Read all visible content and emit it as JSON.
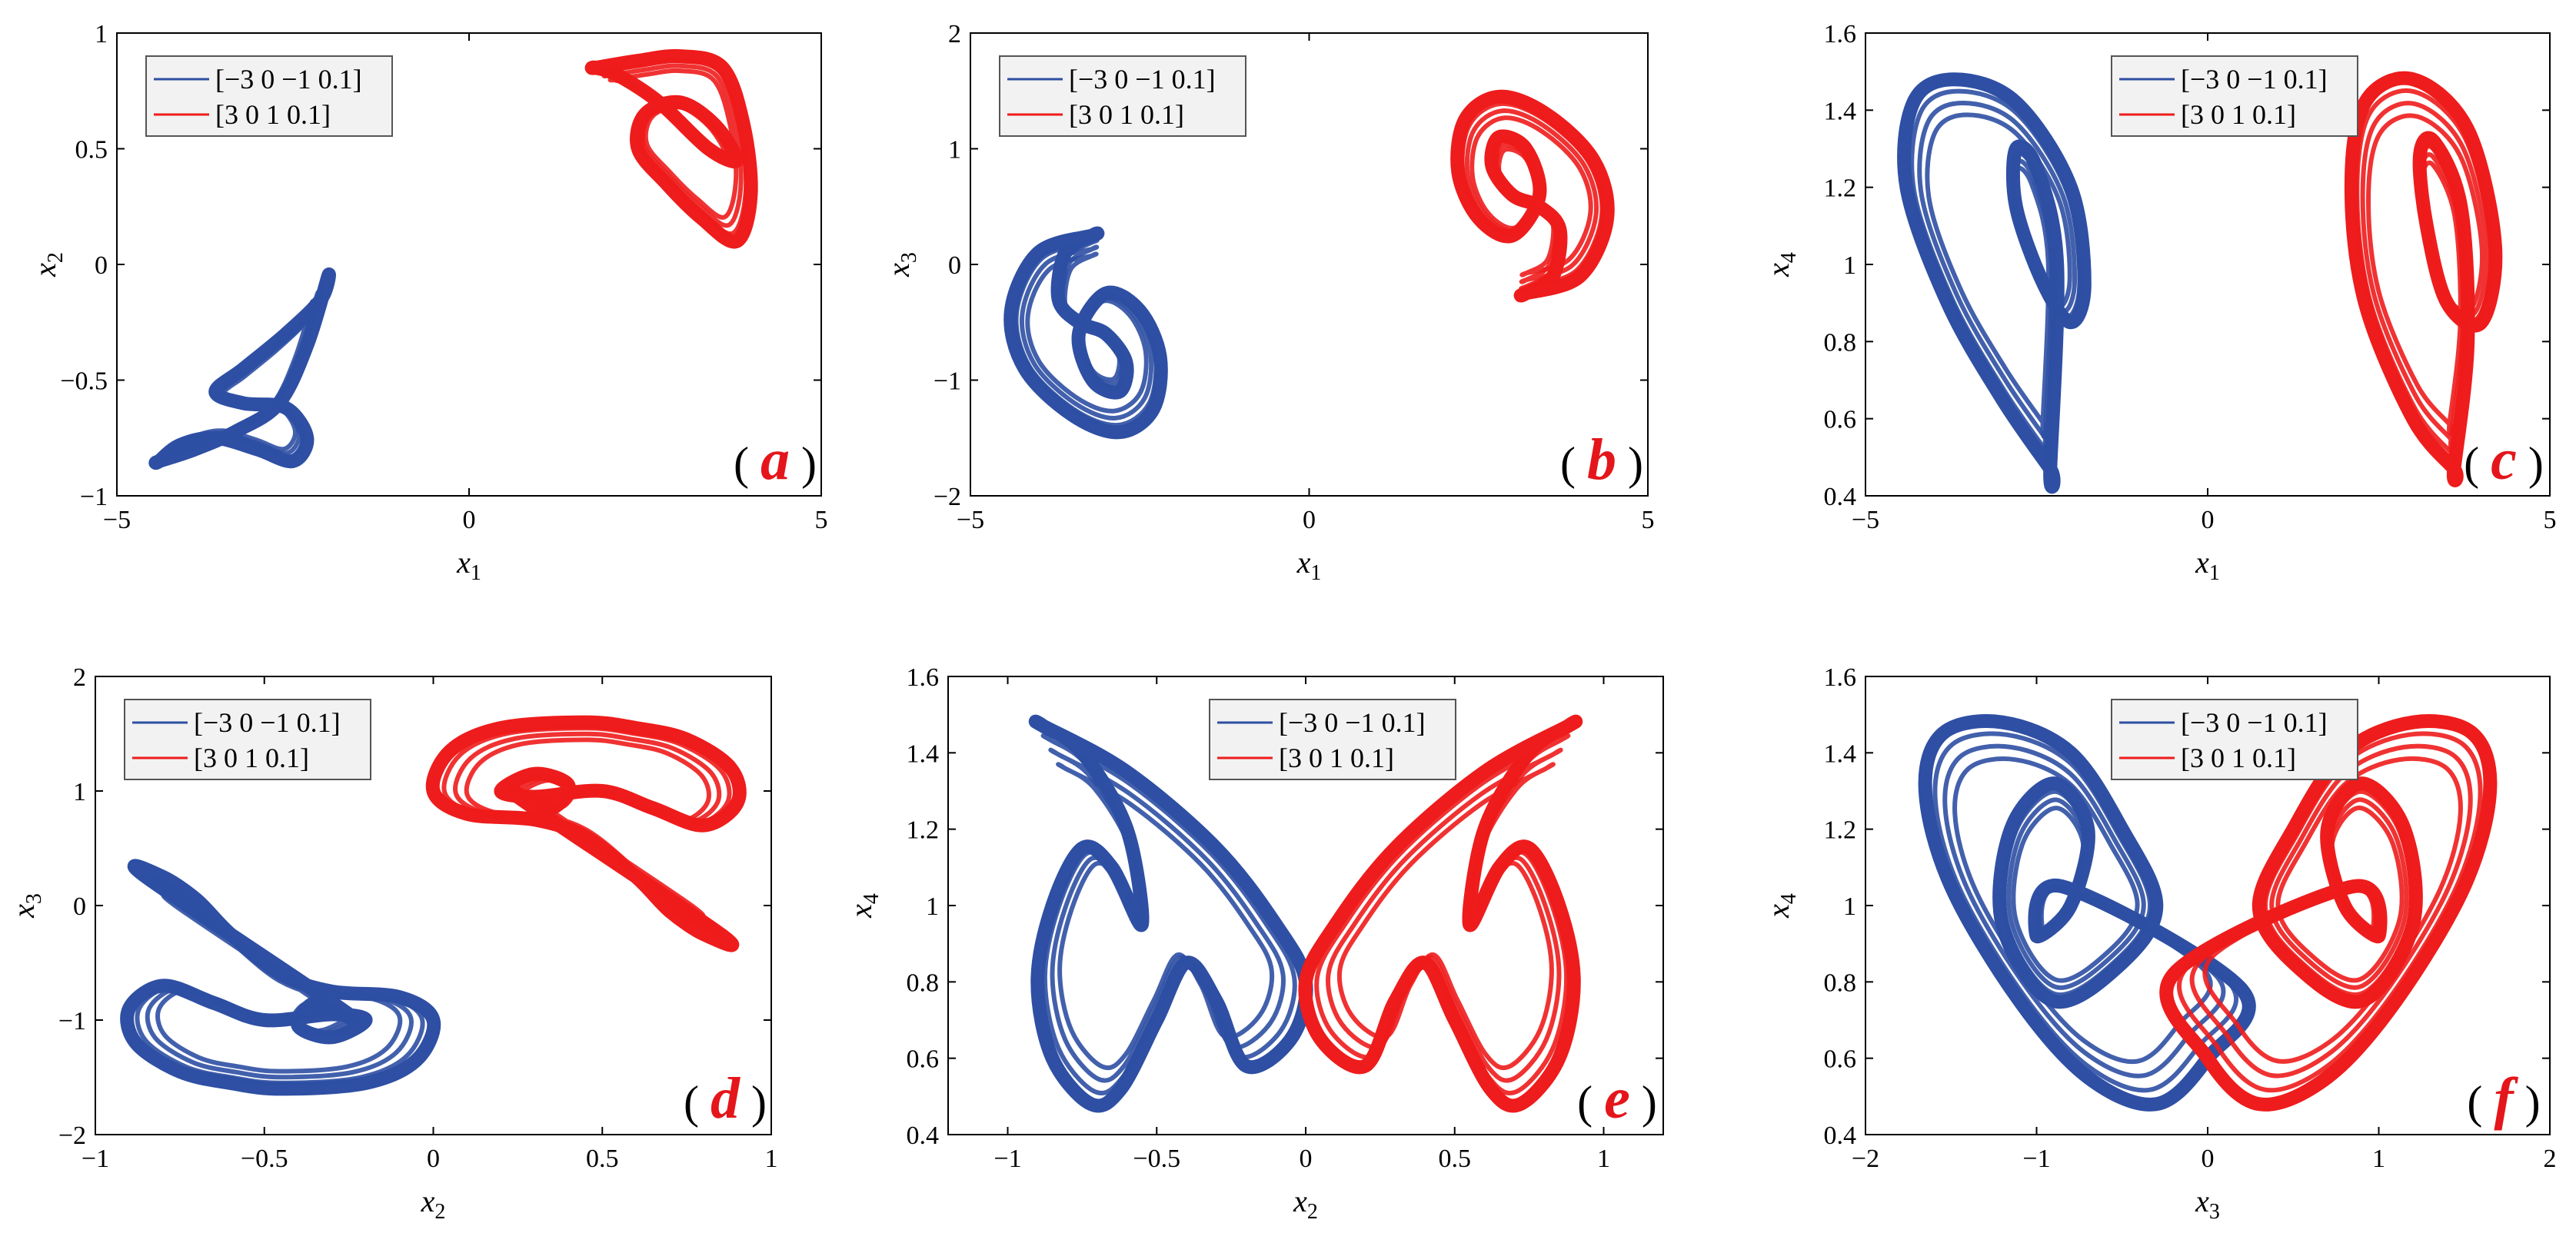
{
  "colors": {
    "series1": "#2E4FA3",
    "series2": "#EE1C1C",
    "panel_label": "#E4161B",
    "axis": "#000000",
    "legend_bg": "#f2f2f2"
  },
  "chart_data": [
    {
      "id": "a",
      "panel_label": "a",
      "type": "line",
      "curve": "attractor",
      "xlabel_var": "x",
      "xlabel_sub": "1",
      "ylabel_var": "x",
      "ylabel_sub": "2",
      "xlim": [
        -5,
        5
      ],
      "ylim": [
        -1,
        1
      ],
      "xticks": [
        -5,
        0,
        5
      ],
      "yticks": [
        -1,
        -0.5,
        0,
        0.5,
        1
      ],
      "xtick_labels": [
        "−5",
        "0",
        "5"
      ],
      "ytick_labels": [
        "−1",
        "−0.5",
        "0",
        "0.5",
        "1"
      ],
      "legend_position": "top-left",
      "series": [
        {
          "name": "[−3 0 −1 0.1]",
          "x": [
            -4.4,
            -3.9,
            -3.3,
            -2.7,
            -2.3,
            -2.0,
            -2.1,
            -2.6,
            -3.2,
            -3.6,
            -3.2,
            -2.6,
            -2.3,
            -2.5,
            -3.0,
            -3.6,
            -4.1,
            -4.4
          ],
          "y": [
            -0.85,
            -0.8,
            -0.72,
            -0.6,
            -0.35,
            -0.05,
            -0.15,
            -0.3,
            -0.45,
            -0.55,
            -0.6,
            -0.62,
            -0.75,
            -0.85,
            -0.8,
            -0.75,
            -0.78,
            -0.85
          ]
        },
        {
          "name": "[3 0 1 0.1]",
          "x": [
            1.8,
            2.4,
            3.0,
            3.6,
            3.9,
            4.0,
            3.8,
            3.3,
            2.8,
            2.4,
            2.5,
            3.0,
            3.5,
            3.8,
            3.4,
            2.7,
            2.1,
            1.8
          ],
          "y": [
            0.85,
            0.88,
            0.9,
            0.85,
            0.6,
            0.3,
            0.1,
            0.2,
            0.35,
            0.5,
            0.65,
            0.7,
            0.6,
            0.45,
            0.5,
            0.7,
            0.82,
            0.85
          ]
        }
      ]
    },
    {
      "id": "b",
      "panel_label": "b",
      "type": "line",
      "curve": "attractor",
      "xlabel_var": "x",
      "xlabel_sub": "1",
      "ylabel_var": "x",
      "ylabel_sub": "3",
      "xlim": [
        -5,
        5
      ],
      "ylim": [
        -2,
        2
      ],
      "xticks": [
        -5,
        0,
        5
      ],
      "yticks": [
        -2,
        -1,
        0,
        1,
        2
      ],
      "xtick_labels": [
        "−5",
        "0",
        "5"
      ],
      "ytick_labels": [
        "−2",
        "−1",
        "0",
        "1",
        "2"
      ],
      "legend_position": "top-left",
      "series": [
        {
          "name": "[−3 0 −1 0.1]",
          "x": [
            -3.2,
            -4.0,
            -4.4,
            -4.2,
            -3.5,
            -2.8,
            -2.3,
            -2.2,
            -2.5,
            -3.0,
            -3.4,
            -3.2,
            -2.8,
            -2.7,
            -3.0,
            -3.4,
            -3.7,
            -3.6,
            -3.2
          ],
          "y": [
            0.25,
            0.1,
            -0.4,
            -0.9,
            -1.3,
            -1.45,
            -1.25,
            -0.8,
            -0.4,
            -0.25,
            -0.6,
            -1.0,
            -1.1,
            -0.85,
            -0.6,
            -0.5,
            -0.3,
            0.1,
            0.25
          ]
        },
        {
          "name": "[3 0 1 0.1]",
          "x": [
            3.2,
            4.0,
            4.4,
            4.2,
            3.5,
            2.8,
            2.3,
            2.2,
            2.5,
            3.0,
            3.4,
            3.2,
            2.8,
            2.7,
            3.0,
            3.4,
            3.7,
            3.6,
            3.2
          ],
          "y": [
            -0.25,
            -0.1,
            0.4,
            0.9,
            1.3,
            1.45,
            1.25,
            0.8,
            0.4,
            0.25,
            0.6,
            1.0,
            1.1,
            0.85,
            0.6,
            0.5,
            0.3,
            -0.1,
            -0.25
          ]
        }
      ]
    },
    {
      "id": "c",
      "panel_label": "c",
      "type": "line",
      "curve": "attractor",
      "xlabel_var": "x",
      "xlabel_sub": "1",
      "ylabel_var": "x",
      "ylabel_sub": "4",
      "xlim": [
        -5,
        5
      ],
      "ylim": [
        0.4,
        1.6
      ],
      "xticks": [
        -5,
        0,
        5
      ],
      "yticks": [
        0.4,
        0.6,
        0.8,
        1.0,
        1.2,
        1.4,
        1.6
      ],
      "xtick_labels": [
        "−5",
        "0",
        "5"
      ],
      "ytick_labels": [
        "0.4",
        "0.6",
        "0.8",
        "1",
        "1.2",
        "1.4",
        "1.6"
      ],
      "legend_position": "top-center",
      "series": [
        {
          "name": "[−3 0 −1 0.1]",
          "x": [
            -2.3,
            -3.0,
            -3.8,
            -4.4,
            -4.3,
            -3.7,
            -2.8,
            -2.0,
            -1.8,
            -2.0,
            -2.4,
            -2.8,
            -2.8,
            -2.5,
            -2.2,
            -2.3
          ],
          "y": [
            0.47,
            0.65,
            0.9,
            1.2,
            1.42,
            1.48,
            1.42,
            1.2,
            0.95,
            0.85,
            0.95,
            1.15,
            1.3,
            1.25,
            1.0,
            0.47
          ]
        },
        {
          "name": "[3 0 1 0.1]",
          "x": [
            3.6,
            3.0,
            2.3,
            2.1,
            2.3,
            3.0,
            3.8,
            4.2,
            4.0,
            3.5,
            3.2,
            3.1,
            3.3,
            3.7,
            3.8,
            3.6
          ],
          "y": [
            0.47,
            0.6,
            0.9,
            1.2,
            1.42,
            1.48,
            1.35,
            1.05,
            0.85,
            0.9,
            1.1,
            1.28,
            1.32,
            1.15,
            0.8,
            0.47
          ]
        }
      ]
    },
    {
      "id": "d",
      "panel_label": "d",
      "type": "line",
      "curve": "attractor",
      "xlabel_var": "x",
      "xlabel_sub": "2",
      "ylabel_var": "x",
      "ylabel_sub": "3",
      "xlim": [
        -1,
        1
      ],
      "ylim": [
        -2,
        2
      ],
      "xticks": [
        -1,
        -0.5,
        0,
        0.5,
        1
      ],
      "yticks": [
        -2,
        -1,
        0,
        1,
        2
      ],
      "xtick_labels": [
        "−1",
        "−0.5",
        "0",
        "0.5",
        "1"
      ],
      "ytick_labels": [
        "−2",
        "−1",
        "0",
        "1",
        "2"
      ],
      "legend_position": "top-left",
      "series": [
        {
          "name": "[−3 0 −1 0.1]",
          "x": [
            -0.85,
            -0.8,
            -0.7,
            -0.6,
            -0.45,
            -0.3,
            -0.1,
            0.0,
            -0.05,
            -0.2,
            -0.45,
            -0.6,
            -0.75,
            -0.88,
            -0.9,
            -0.8,
            -0.65,
            -0.5,
            -0.3,
            -0.2,
            -0.3,
            -0.4,
            -0.35,
            -0.25
          ],
          "y": [
            0.25,
            0.25,
            0.05,
            -0.25,
            -0.6,
            -0.75,
            -0.8,
            -1.0,
            -1.35,
            -1.55,
            -1.6,
            -1.55,
            -1.45,
            -1.2,
            -0.9,
            -0.7,
            -0.85,
            -1.0,
            -0.95,
            -1.0,
            -1.15,
            -1.05,
            -0.85,
            -0.95
          ]
        },
        {
          "name": "[3 0 1 0.1]",
          "x": [
            0.85,
            0.8,
            0.7,
            0.6,
            0.45,
            0.3,
            0.1,
            0.0,
            0.05,
            0.2,
            0.45,
            0.6,
            0.75,
            0.88,
            0.9,
            0.8,
            0.65,
            0.5,
            0.3,
            0.2,
            0.3,
            0.4,
            0.35,
            0.25
          ],
          "y": [
            -0.25,
            -0.25,
            -0.05,
            0.25,
            0.6,
            0.75,
            0.8,
            1.0,
            1.35,
            1.55,
            1.6,
            1.55,
            1.45,
            1.2,
            0.9,
            0.7,
            0.85,
            1.0,
            0.95,
            1.0,
            1.15,
            1.05,
            0.85,
            0.95
          ]
        }
      ]
    },
    {
      "id": "e",
      "panel_label": "e",
      "type": "line",
      "curve": "attractor",
      "xlabel_var": "x",
      "xlabel_sub": "2",
      "ylabel_var": "x",
      "ylabel_sub": "4",
      "xlim": [
        -1.2,
        1.2
      ],
      "ylim": [
        0.4,
        1.6
      ],
      "xticks": [
        -1,
        -0.5,
        0,
        0.5,
        1
      ],
      "yticks": [
        0.4,
        0.6,
        0.8,
        1.0,
        1.2,
        1.4,
        1.6
      ],
      "xtick_labels": [
        "−1",
        "−0.5",
        "0",
        "0.5",
        "1"
      ],
      "ytick_labels": [
        "0.4",
        "0.6",
        "0.8",
        "1",
        "1.2",
        "1.4",
        "1.6"
      ],
      "legend_position": "top-center",
      "series": [
        {
          "name": "[−3 0 −1 0.1]",
          "x": [
            -0.88,
            -0.6,
            -0.3,
            -0.1,
            0.0,
            -0.05,
            -0.2,
            -0.3,
            -0.4,
            -0.5,
            -0.62,
            -0.72,
            -0.85,
            -0.9,
            -0.85,
            -0.75,
            -0.65,
            -0.55,
            -0.6,
            -0.75,
            -0.88
          ],
          "y": [
            1.47,
            1.35,
            1.15,
            0.95,
            0.8,
            0.65,
            0.58,
            0.75,
            0.85,
            0.7,
            0.52,
            0.48,
            0.6,
            0.8,
            1.0,
            1.15,
            1.1,
            0.95,
            1.2,
            1.4,
            1.47
          ]
        },
        {
          "name": "[3 0 1 0.1]",
          "x": [
            0.88,
            0.6,
            0.3,
            0.1,
            0.0,
            0.05,
            0.2,
            0.3,
            0.4,
            0.5,
            0.62,
            0.72,
            0.85,
            0.9,
            0.85,
            0.75,
            0.65,
            0.55,
            0.6,
            0.75,
            0.88
          ],
          "y": [
            1.47,
            1.35,
            1.15,
            0.95,
            0.8,
            0.65,
            0.58,
            0.75,
            0.85,
            0.7,
            0.52,
            0.48,
            0.6,
            0.8,
            1.0,
            1.15,
            1.1,
            0.95,
            1.2,
            1.4,
            1.47
          ]
        }
      ]
    },
    {
      "id": "f",
      "panel_label": "f",
      "type": "line",
      "curve": "attractor",
      "xlabel_var": "x",
      "xlabel_sub": "3",
      "ylabel_var": "x",
      "ylabel_sub": "4",
      "xlim": [
        -2,
        2
      ],
      "ylim": [
        0.4,
        1.6
      ],
      "xticks": [
        -2,
        -1,
        0,
        1,
        2
      ],
      "yticks": [
        0.4,
        0.6,
        0.8,
        1.0,
        1.2,
        1.4,
        1.6
      ],
      "xtick_labels": [
        "−2",
        "−1",
        "0",
        "1",
        "2"
      ],
      "ytick_labels": [
        "0.4",
        "0.6",
        "0.8",
        "1",
        "1.2",
        "1.4",
        "1.6"
      ],
      "legend_position": "top-center",
      "series": [
        {
          "name": "[−3 0 −1 0.1]",
          "x": [
            0.2,
            0.0,
            -0.3,
            -0.7,
            -1.1,
            -1.5,
            -1.65,
            -1.55,
            -1.2,
            -0.8,
            -0.5,
            -0.3,
            -0.5,
            -0.9,
            -1.2,
            -1.15,
            -0.9,
            -0.7,
            -0.8,
            -1.0,
            -0.85
          ],
          "y": [
            0.78,
            0.6,
            0.48,
            0.55,
            0.75,
            1.05,
            1.3,
            1.45,
            1.48,
            1.4,
            1.2,
            1.0,
            0.85,
            0.75,
            0.95,
            1.2,
            1.32,
            1.2,
            1.0,
            0.92,
            1.05
          ]
        },
        {
          "name": "[3 0 1 0.1]",
          "x": [
            -0.2,
            0.0,
            0.3,
            0.7,
            1.1,
            1.5,
            1.65,
            1.55,
            1.2,
            0.8,
            0.5,
            0.3,
            0.5,
            0.9,
            1.2,
            1.15,
            0.9,
            0.7,
            0.8,
            1.0,
            0.85
          ],
          "y": [
            0.82,
            0.6,
            0.48,
            0.55,
            0.75,
            1.05,
            1.3,
            1.45,
            1.48,
            1.4,
            1.2,
            1.0,
            0.85,
            0.75,
            0.95,
            1.2,
            1.32,
            1.2,
            1.0,
            0.92,
            1.05
          ]
        }
      ]
    }
  ]
}
